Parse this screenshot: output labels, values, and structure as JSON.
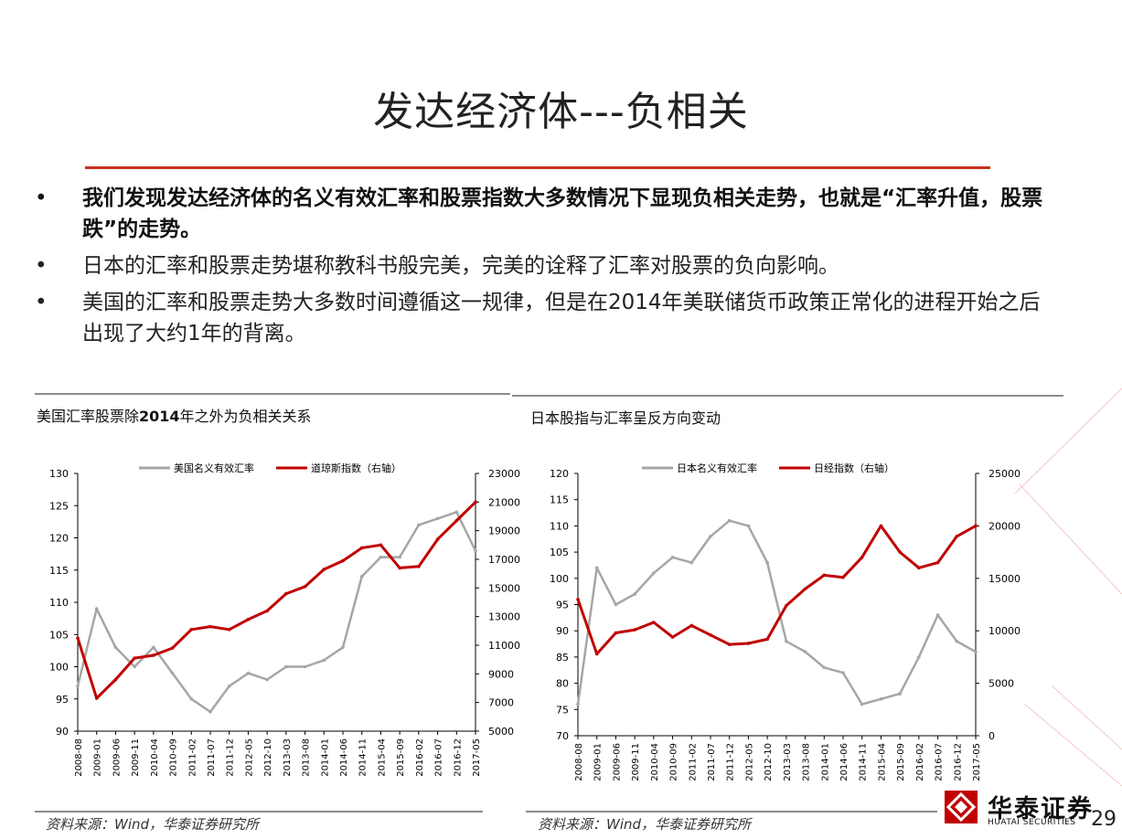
{
  "slide": {
    "title": "发达经济体---负相关",
    "page_number": "29",
    "accent_color": "#c8321e"
  },
  "bullets": [
    {
      "text": "我们发现发达经济体的名义有效汇率和股票指数大多数情况下显现负相关走势，也就是“汇率升值，股票跌”的走势。",
      "bold": true
    },
    {
      "text": "日本的汇率和股票走势堪称教科书般完美，完美的诠释了汇率对股票的负向影响。",
      "bold": false
    },
    {
      "text": "美国的汇率和股票走势大多数时间遵循这一规律，但是在2014年美联储货币政策正常化的进程开始之后出现了大约1年的背离。",
      "bold": false
    }
  ],
  "bullet_marker": "•",
  "left_panel": {
    "title_pre": "美国汇率股票除",
    "title_bold": "2014",
    "title_post": "年之外为负相关关系",
    "source": "资料来源：Wind，华泰证券研究所"
  },
  "right_panel": {
    "title": "日本股指与汇率呈反方向变动",
    "source": "资料来源：Wind，华泰证券研究所"
  },
  "logo": {
    "cn": "华泰证券",
    "en": "HUATAI SECURITIES",
    "icon": "huatai-logo-icon"
  },
  "chart_data": [
    {
      "type": "line",
      "categories": [
        "2008-08",
        "2009-01",
        "2009-06",
        "2009-11",
        "2010-04",
        "2010-09",
        "2011-02",
        "2011-07",
        "2011-12",
        "2012-05",
        "2012-10",
        "2013-03",
        "2013-08",
        "2014-01",
        "2014-06",
        "2014-11",
        "2015-04",
        "2015-09",
        "2016-02",
        "2016-07",
        "2016-12",
        "2017-05"
      ],
      "y_left": {
        "min": 90,
        "max": 130,
        "step": 5,
        "ticks": [
          "90",
          "95",
          "100",
          "105",
          "110",
          "115",
          "120",
          "125",
          "130"
        ]
      },
      "y_right": {
        "min": 5000,
        "max": 23000,
        "step": 2000,
        "ticks": [
          "5000",
          "7000",
          "9000",
          "11000",
          "13000",
          "15000",
          "17000",
          "19000",
          "21000",
          "23000"
        ]
      },
      "series": [
        {
          "name": "美国名义有效汇率",
          "axis": "left",
          "color": "#a6a6a6",
          "values": [
            97,
            109,
            103,
            100,
            103,
            99,
            95,
            93,
            97,
            99,
            98,
            100,
            100,
            101,
            103,
            114,
            117,
            117,
            122,
            123,
            124,
            118
          ]
        },
        {
          "name": "道琼斯指数（右轴）",
          "axis": "right",
          "color": "#c00000",
          "values": [
            11500,
            7300,
            8600,
            10100,
            10300,
            10800,
            12100,
            12300,
            12100,
            12800,
            13400,
            14600,
            15100,
            16300,
            16900,
            17800,
            18000,
            16400,
            16500,
            18400,
            19700,
            21000
          ]
        }
      ],
      "legend": "top"
    },
    {
      "type": "line",
      "categories": [
        "2008-08",
        "2009-01",
        "2009-06",
        "2009-11",
        "2010-04",
        "2010-09",
        "2011-02",
        "2011-07",
        "2011-12",
        "2012-05",
        "2012-10",
        "2013-03",
        "2013-08",
        "2014-01",
        "2014-06",
        "2014-11",
        "2015-04",
        "2015-09",
        "2016-02",
        "2016-07",
        "2016-12",
        "2017-05"
      ],
      "y_left": {
        "min": 70,
        "max": 120,
        "step": 5,
        "ticks": [
          "70",
          "75",
          "80",
          "85",
          "90",
          "95",
          "100",
          "105",
          "110",
          "115",
          "120"
        ]
      },
      "y_right": {
        "min": 0,
        "max": 25000,
        "step": 5000,
        "ticks": [
          "0",
          "5000",
          "10000",
          "15000",
          "20000",
          "25000"
        ]
      },
      "series": [
        {
          "name": "日本名义有效汇率",
          "axis": "left",
          "color": "#a6a6a6",
          "values": [
            76,
            102,
            95,
            97,
            101,
            104,
            103,
            108,
            111,
            110,
            103,
            88,
            86,
            83,
            82,
            76,
            77,
            78,
            85,
            93,
            88,
            86
          ]
        },
        {
          "name": "日经指数（右轴）",
          "axis": "right",
          "color": "#c00000",
          "values": [
            13000,
            7800,
            9800,
            10100,
            10800,
            9400,
            10500,
            9600,
            8700,
            8800,
            9200,
            12400,
            14000,
            15300,
            15100,
            17000,
            20000,
            17500,
            16000,
            16500,
            19000,
            20000
          ]
        }
      ],
      "legend": "top"
    }
  ]
}
